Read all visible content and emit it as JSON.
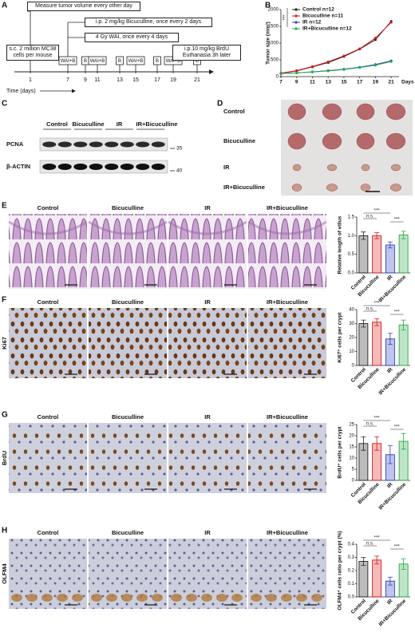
{
  "panels": {
    "a": {
      "letter": "A",
      "monitor": "Measure tumor volume every other day",
      "inoculation": "s.c. 2 million MC38 cells per mouse",
      "drug": "i.p. 2 mg/kg Bicuculline, once every 2 days",
      "radiation": "4 Gy WAI, once every 4 days",
      "endpoint": "i.p.10 mg/kg BrdU Euthanasia 3h later",
      "treatments": [
        "WAI+B",
        "B",
        "WAI+B",
        "B",
        "WAI+B",
        "B",
        "WAI+B",
        "B"
      ],
      "days": [
        "1",
        "7",
        "9",
        "11",
        "13",
        "15",
        "17",
        "19",
        "21"
      ],
      "time_label": "Time (days)"
    },
    "b": {
      "letter": "B"
    },
    "c": {
      "letter": "C",
      "groups": [
        "Control",
        "Bicuculline",
        "IR",
        "IR+Bicuculline"
      ],
      "proteins": [
        "PCNA",
        "β-ACTIN"
      ],
      "markers": [
        "35",
        "40"
      ]
    },
    "d": {
      "letter": "D",
      "groups": [
        "Control",
        "Bicuculline",
        "IR",
        "IR+Bicuculline"
      ]
    },
    "rows": [
      {
        "letter": "E",
        "groups": [
          "Control",
          "Bicuculline",
          "IR",
          "IR+Bicuculline"
        ]
      },
      {
        "letter": "F",
        "stain": "Ki67",
        "groups": [
          "Control",
          "Bicuculline",
          "IR",
          "IR+Bicuculline"
        ]
      },
      {
        "letter": "G",
        "stain": "BrdU",
        "groups": [
          "Control",
          "Bicuculline",
          "IR",
          "IR+Bicuculline"
        ]
      },
      {
        "letter": "H",
        "stain": "OLFM4",
        "groups": [
          "Control",
          "Bicuculline",
          "IR",
          "IR+Bicuculline"
        ]
      }
    ]
  },
  "chart_data": [
    {
      "type": "line",
      "ylabel": "Tumor size (mm³)",
      "xlabel": "Days",
      "x": [
        7,
        9,
        11,
        13,
        15,
        17,
        19,
        21
      ],
      "xlim": [
        7,
        22
      ],
      "xticks": [
        7,
        9,
        11,
        13,
        15,
        17,
        19,
        21
      ],
      "ylim": [
        0,
        2000
      ],
      "yticks": [
        0,
        500,
        1000,
        1500,
        2000
      ],
      "series": [
        {
          "name": "Control n=12",
          "color": "#222222",
          "values": [
            100,
            170,
            290,
            420,
            600,
            820,
            1100,
            1650
          ]
        },
        {
          "name": "Bicuculline n=11",
          "color": "#d7191c",
          "values": [
            100,
            180,
            300,
            440,
            620,
            830,
            1150,
            1620
          ]
        },
        {
          "name": "IR n=12",
          "color": "#2b3fbf",
          "values": [
            90,
            110,
            140,
            180,
            220,
            280,
            360,
            470
          ]
        },
        {
          "name": "IR+Bicuculline n=12",
          "color": "#29a845",
          "values": [
            90,
            110,
            140,
            170,
            210,
            270,
            340,
            450
          ]
        }
      ],
      "annotations": [
        "***"
      ]
    },
    {
      "type": "bar",
      "ylabel": "Relative length of villus",
      "categories": [
        "Control",
        "Bicuculline",
        "IR",
        "IR+Bicuculline"
      ],
      "values": [
        1.0,
        1.0,
        0.75,
        1.02
      ],
      "errors": [
        0.1,
        0.08,
        0.08,
        0.1
      ],
      "colors": [
        "#222222",
        "#d7191c",
        "#2b3fbf",
        "#29a845"
      ],
      "ylim": [
        0,
        1.5
      ],
      "yticks": [
        {
          "value": 0,
          "label": "0.0"
        },
        {
          "value": 0.5,
          "label": "0.5"
        },
        {
          "value": 1,
          "label": "1.0"
        },
        {
          "value": 1.5,
          "label": "1.5"
        }
      ],
      "annotations": [
        "n.s.",
        "***",
        "***"
      ]
    },
    {
      "type": "bar",
      "ylabel": "Ki67⁺ cells per crypt",
      "categories": [
        "Control",
        "Bicuculline",
        "IR",
        "IR+Bicuculline"
      ],
      "values": [
        30,
        31,
        19,
        29
      ],
      "errors": [
        2.5,
        2.5,
        4,
        3.5
      ],
      "colors": [
        "#222222",
        "#d7191c",
        "#2b3fbf",
        "#29a845"
      ],
      "ylim": [
        0,
        40
      ],
      "yticks": [
        0,
        10,
        20,
        30,
        40
      ],
      "annotations": [
        "n.s.",
        "***",
        "***"
      ]
    },
    {
      "type": "bar",
      "ylabel": "BrdU⁺ cells per crypt",
      "categories": [
        "Control",
        "Bicuculline",
        "IR",
        "IR+Bicuculline"
      ],
      "values": [
        16.5,
        16.5,
        11.5,
        17.5
      ],
      "errors": [
        3,
        3,
        4,
        3.5
      ],
      "colors": [
        "#222222",
        "#d7191c",
        "#2b3fbf",
        "#29a845"
      ],
      "ylim": [
        0,
        25
      ],
      "yticks": [
        0,
        5,
        10,
        15,
        20,
        25
      ],
      "annotations": [
        "n.s.",
        "***",
        "***"
      ]
    },
    {
      "type": "bar",
      "ylabel": "OLFM4⁺ cells ratio per crypt (%)",
      "categories": [
        "Control",
        "Bicuculline",
        "IR",
        "IR+Bicuculline"
      ],
      "values": [
        0.27,
        0.28,
        0.12,
        0.25
      ],
      "errors": [
        0.03,
        0.03,
        0.03,
        0.04
      ],
      "colors": [
        "#222222",
        "#d7191c",
        "#2b3fbf",
        "#29a845"
      ],
      "ylim": [
        0,
        0.4
      ],
      "yticks": [
        {
          "value": 0,
          "label": "0.0"
        },
        {
          "value": 0.1,
          "label": "0.1"
        },
        {
          "value": 0.2,
          "label": "0.2"
        },
        {
          "value": 0.3,
          "label": "0.3"
        },
        {
          "value": 0.4,
          "label": "0.4"
        }
      ],
      "annotations": [
        "n.s.",
        "***",
        "***"
      ]
    }
  ]
}
